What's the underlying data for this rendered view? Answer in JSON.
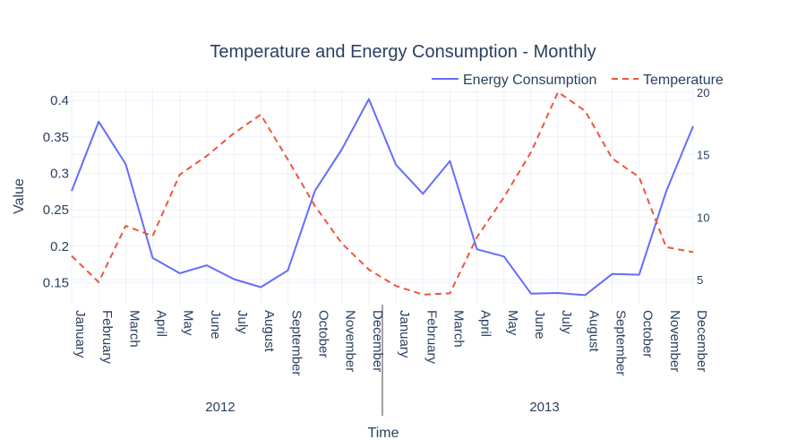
{
  "chart_data": {
    "type": "line",
    "title": "Temperature and Energy Consumption - Monthly",
    "xlabel": "Time",
    "ylabel": "Value",
    "y_range": [
      0.12,
      0.415
    ],
    "y_ticks": [
      "0.15",
      "0.2",
      "0.25",
      "0.3",
      "0.35",
      "0.4"
    ],
    "y2_range": [
      3,
      20.2
    ],
    "y2_ticks": [
      "5",
      "10",
      "15",
      "20"
    ],
    "grid": true,
    "legend_position": "top-right",
    "categories": [
      "January",
      "February",
      "March",
      "April",
      "May",
      "June",
      "July",
      "August",
      "September",
      "October",
      "November",
      "December",
      "January",
      "February",
      "March",
      "April",
      "May",
      "June",
      "July",
      "August",
      "September",
      "October",
      "November",
      "December"
    ],
    "year_groups": [
      {
        "label": "2012",
        "count": 12
      },
      {
        "label": "2013",
        "count": 12
      }
    ],
    "series": [
      {
        "name": "Energy Consumption",
        "axis": "left",
        "color": "#636efa",
        "dash": "solid",
        "values": [
          0.276,
          0.371,
          0.313,
          0.184,
          0.163,
          0.174,
          0.155,
          0.144,
          0.167,
          0.276,
          0.333,
          0.402,
          0.312,
          0.272,
          0.317,
          0.196,
          0.186,
          0.135,
          0.136,
          0.133,
          0.162,
          0.161,
          0.275,
          0.365
        ]
      },
      {
        "name": "Temperature",
        "axis": "right",
        "color": "#ef553b",
        "dash": "dash",
        "values": [
          6.9,
          4.8,
          9.3,
          8.5,
          13.4,
          14.9,
          16.7,
          18.2,
          14.6,
          10.9,
          7.9,
          5.8,
          4.5,
          3.8,
          3.9,
          8.4,
          11.6,
          15.2,
          20.0,
          18.5,
          14.7,
          13.2,
          7.6,
          7.2
        ]
      }
    ]
  }
}
